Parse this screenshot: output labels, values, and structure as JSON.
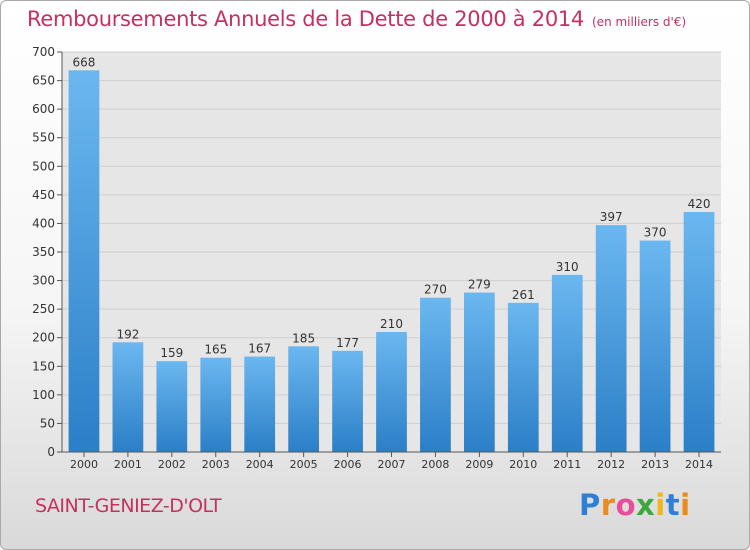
{
  "title": "Remboursements Annuels de la Dette de 2000 à 2014",
  "unit_note": "(en milliers d'€)",
  "commune": "SAINT-GENIEZ-D'OLT",
  "logo": {
    "letters": [
      "P",
      "r",
      "o",
      "x",
      "i",
      "t",
      "i"
    ],
    "colors": [
      "#2f7fd5",
      "#e98b1f",
      "#e84d9b",
      "#3ea83e",
      "#f0b71b",
      "#2f7fd5",
      "#e98b1f"
    ]
  },
  "colors": {
    "bar_light": "#6bb7f0",
    "bar_dark": "#2b7fc7",
    "title": "#c5315e",
    "grid": "#cfcfcf",
    "plot_bg": "#e6e6e6"
  },
  "chart_data": {
    "type": "bar",
    "title": "Remboursements Annuels de la Dette de 2000 à 2014",
    "ylabel": "",
    "xlabel": "",
    "ylim": [
      0,
      700
    ],
    "yticks": [
      0,
      50,
      100,
      150,
      200,
      250,
      300,
      350,
      400,
      450,
      500,
      550,
      600,
      650,
      700
    ],
    "grid": true,
    "categories": [
      "2000",
      "2001",
      "2002",
      "2003",
      "2004",
      "2005",
      "2006",
      "2007",
      "2008",
      "2009",
      "2010",
      "2011",
      "2012",
      "2013",
      "2014"
    ],
    "values": [
      668,
      192,
      159,
      165,
      167,
      185,
      177,
      210,
      270,
      279,
      261,
      310,
      397,
      370,
      420
    ]
  }
}
